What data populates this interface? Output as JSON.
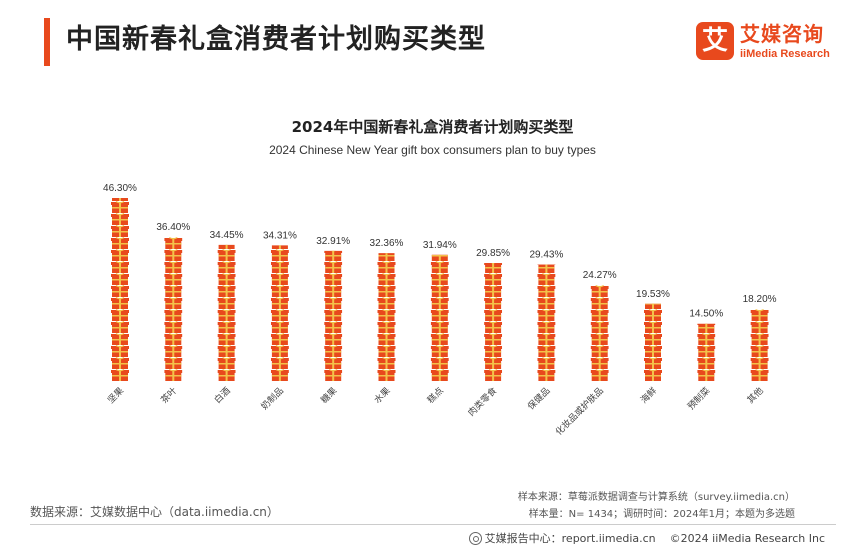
{
  "header": {
    "title": "中国新春礼盒消费者计划购买类型",
    "logo_mark": "艾",
    "logo_cn": "艾媒咨询",
    "logo_en": "iiMedia Research"
  },
  "colors": {
    "accent": "#e8491d",
    "gift_red": "#e8491d",
    "gift_ribbon": "#f3c24a"
  },
  "chart_data": {
    "type": "bar",
    "title": "2024年中国新春礼盒消费者计划购买类型",
    "subtitle": "2024 Chinese New Year gift box consumers plan to buy types",
    "categories": [
      "坚果",
      "茶叶",
      "白酒",
      "奶制品",
      "糖果",
      "水果",
      "糕点",
      "肉类零食",
      "保健品",
      "化妆品或护肤品",
      "海鲜",
      "预制菜",
      "其他"
    ],
    "values": [
      46.3,
      36.4,
      34.45,
      34.31,
      32.91,
      32.36,
      31.94,
      29.85,
      29.43,
      24.27,
      19.53,
      14.5,
      18.2
    ],
    "value_labels": [
      "46.30%",
      "36.40%",
      "34.45%",
      "34.31%",
      "32.91%",
      "32.36%",
      "31.94%",
      "29.85%",
      "29.43%",
      "24.27%",
      "19.53%",
      "14.50%",
      "18.20%"
    ],
    "ylim": [
      0,
      50
    ],
    "grid": false,
    "legend": "none"
  },
  "footer": {
    "source": "数据来源：艾媒数据中心（data.iimedia.cn）",
    "sample_source": "样本来源：草莓派数据调查与计算系统（survey.iimedia.cn）",
    "sample_size": "样本量：N= 1434；调研时间：2024年1月；本题为多选题",
    "report_center": "艾媒报告中心：report.iimedia.cn",
    "copyright": "©2024  iiMedia Research  Inc"
  }
}
